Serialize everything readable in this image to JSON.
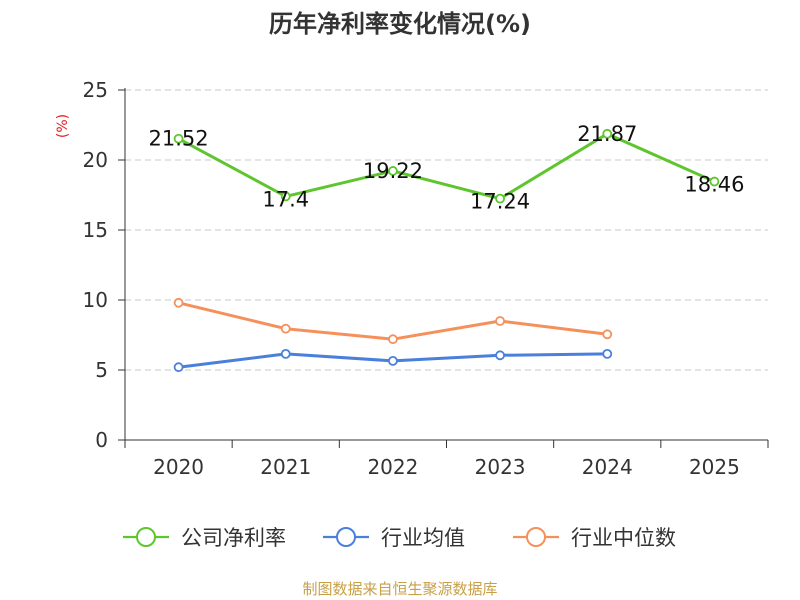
{
  "chart_data": {
    "type": "line",
    "title": "历年净利率变化情况(%)",
    "ylabel": "(%)",
    "xlabel": "",
    "categories": [
      "2020",
      "2021",
      "2022",
      "2023",
      "2024",
      "2025"
    ],
    "ylim": [
      0,
      25
    ],
    "yticks": [
      0,
      5,
      10,
      15,
      20,
      25
    ],
    "grid": true,
    "legend_position": "bottom",
    "series": [
      {
        "name": "公司净利率",
        "color": "#5ec52e",
        "values": [
          21.52,
          17.4,
          19.22,
          17.24,
          21.87,
          18.46
        ],
        "labels": [
          "21.52",
          "17.4",
          "19.22",
          "17.24",
          "21.87",
          "18.46"
        ]
      },
      {
        "name": "行业均值",
        "color": "#4a7fdb",
        "values": [
          5.2,
          6.15,
          5.65,
          6.05,
          6.15,
          null
        ]
      },
      {
        "name": "行业中位数",
        "color": "#f5905a",
        "values": [
          9.8,
          7.95,
          7.2,
          8.5,
          7.55,
          null
        ]
      }
    ]
  },
  "source": "制图数据来自恒生聚源数据库"
}
